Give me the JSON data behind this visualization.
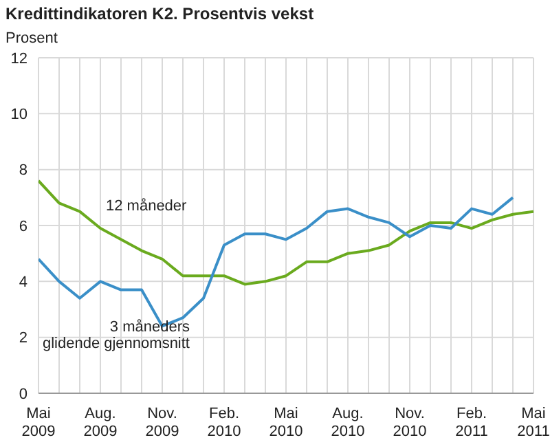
{
  "chart_data": {
    "type": "line",
    "title": "Kredittindikatoren K2. Prosentvis vekst",
    "ylabel": "Prosent",
    "categories": [
      "Mai 2009",
      null,
      null,
      "Aug. 2009",
      null,
      null,
      "Nov. 2009",
      null,
      null,
      "Feb. 2010",
      null,
      null,
      "Mai 2010",
      null,
      null,
      "Aug. 2010",
      null,
      null,
      "Nov. 2010",
      null,
      null,
      "Feb. 2011",
      null,
      null,
      "Mai 2011"
    ],
    "series": [
      {
        "color": "#6aaa1e",
        "values": [
          7.6,
          6.8,
          6.5,
          5.9,
          5.5,
          5.1,
          4.8,
          4.2,
          4.2,
          4.2,
          3.9,
          4.0,
          4.2,
          4.7,
          4.7,
          5.0,
          5.1,
          5.3,
          5.8,
          6.1,
          6.1,
          5.9,
          6.2,
          6.4,
          6.5
        ]
      },
      {
        "color": "#3a8fc8",
        "values": [
          4.8,
          4.0,
          3.4,
          4.0,
          3.7,
          3.7,
          2.4,
          2.7,
          3.4,
          5.3,
          5.7,
          5.7,
          5.5,
          5.9,
          6.5,
          6.6,
          6.3,
          6.1,
          5.6,
          6.0,
          5.9,
          6.6,
          6.4,
          7.0,
          null
        ]
      }
    ],
    "annotations": [
      "12 måneder",
      "3 måneders\nglidende gjennomsnitt"
    ],
    "ylim": [
      0,
      12
    ],
    "yticks": [
      0,
      2,
      4,
      6,
      8,
      10,
      12
    ],
    "grid": true,
    "legend": false,
    "marker": "none",
    "line_style": "solid"
  }
}
